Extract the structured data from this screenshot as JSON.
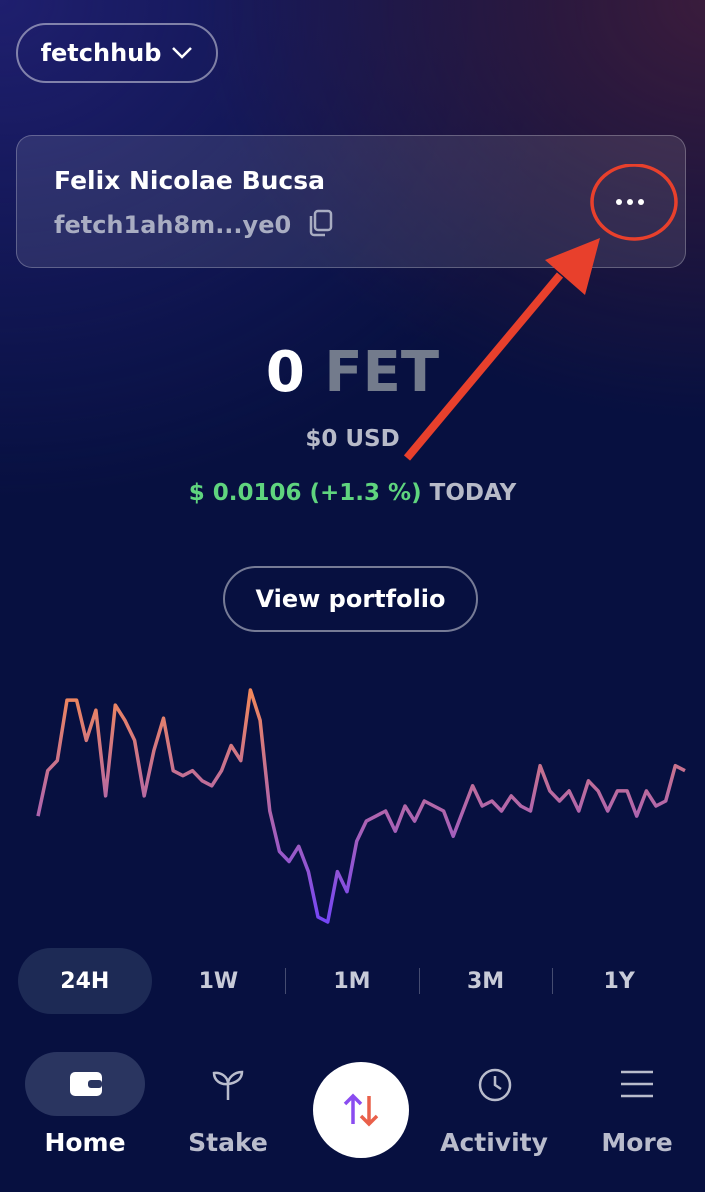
{
  "header": {
    "network": "fetchhub"
  },
  "account": {
    "name": "Felix Nicolae Bucsa",
    "address": "fetch1ah8m...ye0"
  },
  "balance": {
    "amount": "0",
    "denom": "FET",
    "usd": "$0 USD",
    "price_change": "$ 0.0106 (+1.3 %)",
    "period": "TODAY"
  },
  "button": "View portfolio",
  "price_chart": {
    "type": "line",
    "colors": [
      "#f2885a",
      "#7446f7"
    ],
    "values": [
      107,
      152,
      162,
      222,
      222,
      182,
      212,
      127,
      217,
      202,
      182,
      127,
      172,
      204,
      152,
      147,
      152,
      142,
      137,
      152,
      177,
      162,
      232,
      202,
      112,
      72,
      62,
      77,
      52,
      7,
      2,
      52,
      32,
      82,
      102,
      107,
      112,
      92,
      117,
      102,
      122,
      117,
      112,
      87,
      112,
      137,
      117,
      122,
      112,
      127,
      117,
      112,
      157,
      132,
      122,
      132,
      112,
      142,
      132,
      112,
      132,
      132,
      107,
      132,
      117,
      122,
      157,
      152
    ]
  },
  "time_ranges": [
    "24H",
    "1W",
    "1M",
    "3M",
    "1Y"
  ],
  "nav": [
    "Home",
    "Stake",
    "Activity",
    "More"
  ]
}
